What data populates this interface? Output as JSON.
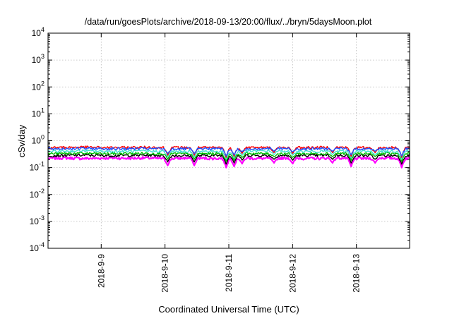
{
  "chart_data": {
    "type": "line",
    "title": "/data/run/goesPlots/archive/2018-09-13/20:00/flux/../bryn/5daysMoon.plot",
    "xlabel": "Coordinated Universal Time (UTC)",
    "ylabel": "cSv/day",
    "yscale": "log",
    "ylim": [
      0.0001,
      10000
    ],
    "xlim": [
      "2018-09-08 04:00",
      "2018-09-13 20:00"
    ],
    "x_tick_labels": [
      "2018-9-9",
      "2018-9-10",
      "2018-9-11",
      "2018-9-12",
      "2018-9-13"
    ],
    "x_ticks": [
      "2018-09-09 00:00",
      "2018-09-10 00:00",
      "2018-09-11 00:00",
      "2018-09-12 00:00",
      "2018-09-13 00:00"
    ],
    "y_ticks": [
      {
        "value": 0.0001,
        "base": "10",
        "exp": "-4"
      },
      {
        "value": 0.001,
        "base": "10",
        "exp": "-3"
      },
      {
        "value": 0.01,
        "base": "10",
        "exp": "-2"
      },
      {
        "value": 0.1,
        "base": "10",
        "exp": "-1"
      },
      {
        "value": 1,
        "base": "10",
        "exp": "0"
      },
      {
        "value": 10,
        "base": "10",
        "exp": "1"
      },
      {
        "value": 100,
        "base": "10",
        "exp": "2"
      },
      {
        "value": 1000,
        "base": "10",
        "exp": "3"
      },
      {
        "value": 10000,
        "base": "10",
        "exp": "4"
      }
    ],
    "grid": true,
    "series": [
      {
        "color": "#ff00ff",
        "level": 0.22,
        "points": [
          [
            "2018-09-08 04:00",
            0.22
          ],
          [
            "2018-09-08 10:00",
            0.23
          ],
          [
            "2018-09-08 16:00",
            0.22
          ],
          [
            "2018-09-08 22:00",
            0.22
          ],
          [
            "2018-09-09 04:00",
            0.23
          ],
          [
            "2018-09-09 10:00",
            0.22
          ],
          [
            "2018-09-09 16:00",
            0.23
          ],
          [
            "2018-09-09 22:00",
            0.22
          ],
          [
            "2018-09-10 04:00",
            0.22
          ],
          [
            "2018-09-10 10:00",
            0.23
          ],
          [
            "2018-09-10 16:00",
            0.22
          ],
          [
            "2018-09-10 22:00",
            0.22
          ],
          [
            "2018-09-11 04:00",
            0.23
          ],
          [
            "2018-09-11 10:00",
            0.22
          ],
          [
            "2018-09-11 16:00",
            0.22
          ],
          [
            "2018-09-11 22:00",
            0.23
          ],
          [
            "2018-09-12 04:00",
            0.22
          ],
          [
            "2018-09-12 10:00",
            0.22
          ],
          [
            "2018-09-12 16:00",
            0.23
          ],
          [
            "2018-09-12 22:00",
            0.22
          ],
          [
            "2018-09-13 04:00",
            0.22
          ],
          [
            "2018-09-13 10:00",
            0.23
          ],
          [
            "2018-09-13 16:00",
            0.22
          ],
          [
            "2018-09-13 20:00",
            0.22
          ]
        ]
      },
      {
        "color": "#000000",
        "level": 0.28,
        "points": [
          [
            "2018-09-08 04:00",
            0.28
          ],
          [
            "2018-09-08 16:00",
            0.29
          ],
          [
            "2018-09-09 04:00",
            0.28
          ],
          [
            "2018-09-09 16:00",
            0.29
          ],
          [
            "2018-09-10 04:00",
            0.28
          ],
          [
            "2018-09-10 16:00",
            0.28
          ],
          [
            "2018-09-11 04:00",
            0.29
          ],
          [
            "2018-09-11 16:00",
            0.28
          ],
          [
            "2018-09-12 04:00",
            0.28
          ],
          [
            "2018-09-12 16:00",
            0.29
          ],
          [
            "2018-09-13 04:00",
            0.28
          ],
          [
            "2018-09-13 20:00",
            0.28
          ]
        ]
      },
      {
        "color": "#00c000",
        "level": 0.33,
        "points": [
          [
            "2018-09-08 04:00",
            0.33
          ],
          [
            "2018-09-08 16:00",
            0.34
          ],
          [
            "2018-09-09 04:00",
            0.33
          ],
          [
            "2018-09-09 16:00",
            0.34
          ],
          [
            "2018-09-10 04:00",
            0.33
          ],
          [
            "2018-09-10 16:00",
            0.33
          ],
          [
            "2018-09-11 04:00",
            0.34
          ],
          [
            "2018-09-11 16:00",
            0.33
          ],
          [
            "2018-09-12 04:00",
            0.33
          ],
          [
            "2018-09-12 16:00",
            0.34
          ],
          [
            "2018-09-13 04:00",
            0.33
          ],
          [
            "2018-09-13 20:00",
            0.33
          ]
        ]
      },
      {
        "color": "#40e0d0",
        "level": 0.4,
        "points": [
          [
            "2018-09-08 04:00",
            0.4
          ],
          [
            "2018-09-08 16:00",
            0.42
          ],
          [
            "2018-09-09 04:00",
            0.4
          ],
          [
            "2018-09-09 16:00",
            0.41
          ],
          [
            "2018-09-10 04:00",
            0.4
          ],
          [
            "2018-09-10 16:00",
            0.41
          ],
          [
            "2018-09-11 04:00",
            0.4
          ],
          [
            "2018-09-11 16:00",
            0.42
          ],
          [
            "2018-09-12 04:00",
            0.4
          ],
          [
            "2018-09-12 16:00",
            0.41
          ],
          [
            "2018-09-13 04:00",
            0.4
          ],
          [
            "2018-09-13 20:00",
            0.41
          ]
        ]
      },
      {
        "color": "#ff0000",
        "level": 0.55,
        "points": [
          [
            "2018-09-08 04:00",
            0.55
          ],
          [
            "2018-09-08 16:00",
            0.58
          ],
          [
            "2018-09-09 04:00",
            0.55
          ],
          [
            "2018-09-09 16:00",
            0.57
          ],
          [
            "2018-09-10 04:00",
            0.56
          ],
          [
            "2018-09-10 16:00",
            0.55
          ],
          [
            "2018-09-11 04:00",
            0.57
          ],
          [
            "2018-09-11 16:00",
            0.55
          ],
          [
            "2018-09-12 04:00",
            0.56
          ],
          [
            "2018-09-12 16:00",
            0.57
          ],
          [
            "2018-09-13 04:00",
            0.55
          ],
          [
            "2018-09-13 20:00",
            0.56
          ]
        ]
      },
      {
        "color": "#1e50ff",
        "level": 0.5,
        "points": [
          [
            "2018-09-08 04:00",
            0.5
          ],
          [
            "2018-09-08 16:00",
            0.52
          ],
          [
            "2018-09-09 04:00",
            0.5
          ],
          [
            "2018-09-09 16:00",
            0.51
          ],
          [
            "2018-09-10 04:00",
            0.5
          ],
          [
            "2018-09-10 16:00",
            0.51
          ],
          [
            "2018-09-11 04:00",
            0.5
          ],
          [
            "2018-09-11 16:00",
            0.52
          ],
          [
            "2018-09-12 04:00",
            0.5
          ],
          [
            "2018-09-12 16:00",
            0.51
          ],
          [
            "2018-09-13 04:00",
            0.5
          ],
          [
            "2018-09-13 20:00",
            0.51
          ]
        ]
      }
    ],
    "dips": [
      {
        "x": "2018-09-10 01:00",
        "y": 0.12
      },
      {
        "x": "2018-09-10 11:00",
        "y": 0.12
      },
      {
        "x": "2018-09-10 23:00",
        "y": 0.1
      },
      {
        "x": "2018-09-11 02:00",
        "y": 0.11
      },
      {
        "x": "2018-09-11 05:00",
        "y": 0.14
      },
      {
        "x": "2018-09-11 17:00",
        "y": 0.15
      },
      {
        "x": "2018-09-12 00:00",
        "y": 0.14
      },
      {
        "x": "2018-09-12 15:00",
        "y": 0.15
      },
      {
        "x": "2018-09-12 22:00",
        "y": 0.11
      },
      {
        "x": "2018-09-13 07:00",
        "y": 0.15
      },
      {
        "x": "2018-09-13 17:00",
        "y": 0.1
      }
    ]
  }
}
